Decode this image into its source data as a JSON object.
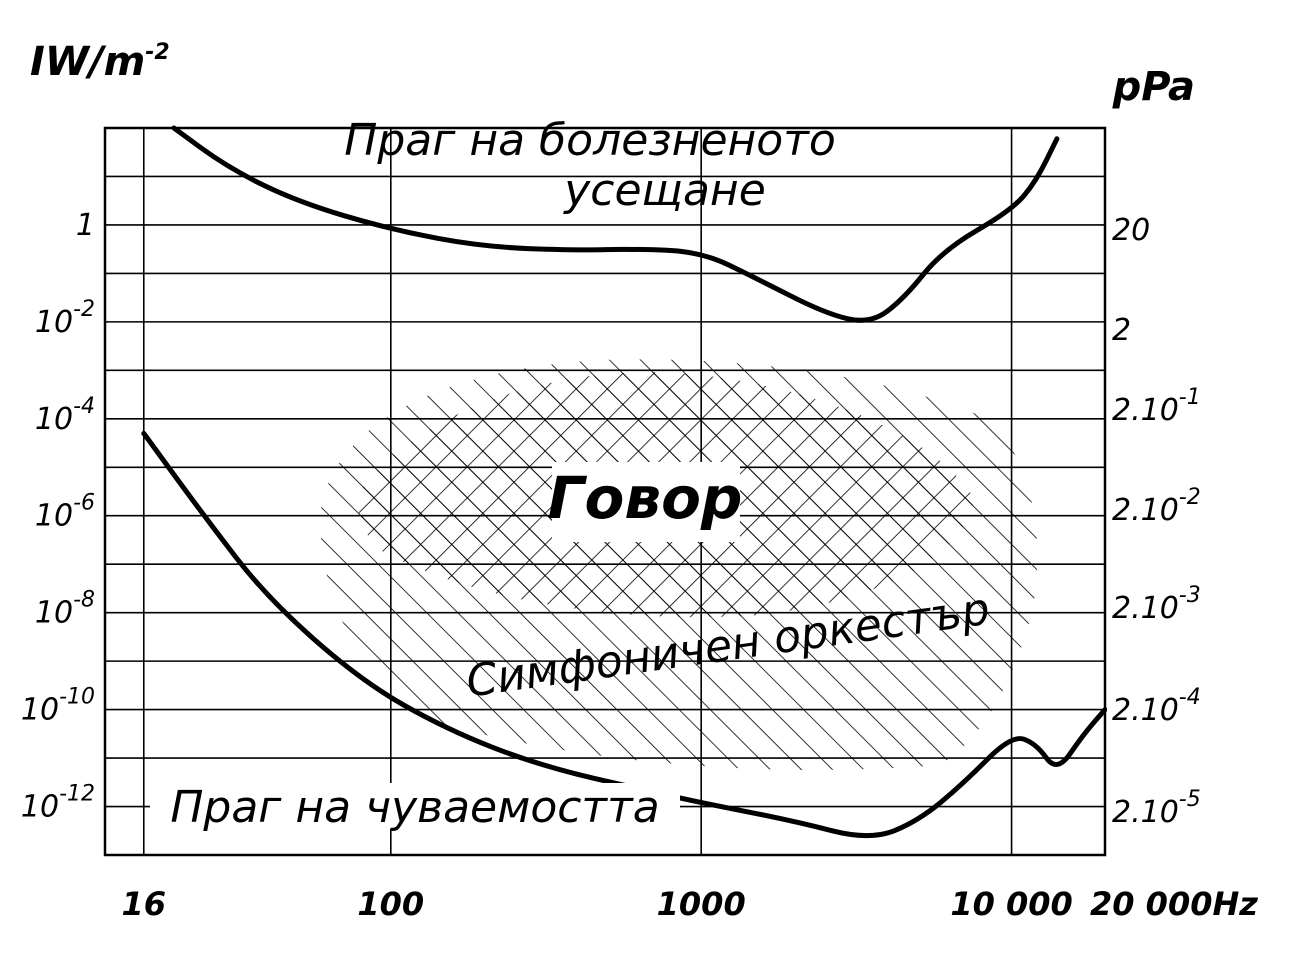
{
  "chart_data": {
    "type": "line",
    "y_left_label": "IW/m",
    "y_left_label_sup": "-2",
    "y_right_label": "pPa",
    "x_unit_label": "Hz",
    "x_scale": "log",
    "x_ticks": [
      {
        "value": 16,
        "label": "16"
      },
      {
        "value": 100,
        "label": "100"
      },
      {
        "value": 1000,
        "label": "1000"
      },
      {
        "value": 10000,
        "label": "10 000"
      },
      {
        "value": 20000,
        "label": "20 000"
      }
    ],
    "y_left_scale": "log",
    "y_left_ticks": [
      {
        "value": 1,
        "base": "1",
        "exp": ""
      },
      {
        "value": 0.01,
        "base": "10",
        "exp": "-2"
      },
      {
        "value": 0.0001,
        "base": "10",
        "exp": "-4"
      },
      {
        "value": 1e-06,
        "base": "10",
        "exp": "-6"
      },
      {
        "value": 1e-08,
        "base": "10",
        "exp": "-8"
      },
      {
        "value": 1e-10,
        "base": "10",
        "exp": "-10"
      },
      {
        "value": 1e-12,
        "base": "10",
        "exp": "-12"
      }
    ],
    "y_right_ticks": [
      {
        "value": 20,
        "base": "20",
        "exp": ""
      },
      {
        "value": 2,
        "base": "2",
        "exp": ""
      },
      {
        "value": 0.2,
        "base": "2.10",
        "exp": "-1"
      },
      {
        "value": 0.02,
        "base": "2.10",
        "exp": "-2"
      },
      {
        "value": 0.002,
        "base": "2.10",
        "exp": "-3"
      },
      {
        "value": 0.0002,
        "base": "2.10",
        "exp": "-4"
      },
      {
        "value": 2e-05,
        "base": "2.10",
        "exp": "-5"
      }
    ],
    "xlim": [
      12,
      20000
    ],
    "ylim_left": [
      1e-13,
      100
    ],
    "grid": true,
    "series": [
      {
        "name": "Праг на болезненото усещане",
        "label_lines": [
          "Праг на болезненото",
          "усещане"
        ],
        "points": [
          [
            20,
            100
          ],
          [
            30,
            15
          ],
          [
            50,
            3
          ],
          [
            100,
            0.8
          ],
          [
            200,
            0.35
          ],
          [
            400,
            0.3
          ],
          [
            600,
            0.32
          ],
          [
            1000,
            0.28
          ],
          [
            1500,
            0.08
          ],
          [
            2500,
            0.015
          ],
          [
            3500,
            0.009
          ],
          [
            4500,
            0.03
          ],
          [
            6000,
            0.3
          ],
          [
            10000,
            2
          ],
          [
            12000,
            8
          ],
          [
            14000,
            60
          ]
        ]
      },
      {
        "name": "Праг на чуваемостта",
        "label_lines": [
          "Праг на чуваемостта"
        ],
        "points": [
          [
            16,
            5e-05
          ],
          [
            25,
            1e-06
          ],
          [
            40,
            2e-08
          ],
          [
            80,
            4e-10
          ],
          [
            150,
            4e-11
          ],
          [
            300,
            7e-12
          ],
          [
            700,
            2e-12
          ],
          [
            1000,
            1.2e-12
          ],
          [
            2000,
            5e-13
          ],
          [
            3500,
            2e-13
          ],
          [
            5000,
            5e-13
          ],
          [
            7000,
            3e-12
          ],
          [
            10000,
            3e-11
          ],
          [
            12000,
            2e-11
          ],
          [
            14000,
            5e-12
          ],
          [
            17000,
            3e-11
          ],
          [
            20000,
            1e-10
          ]
        ]
      }
    ],
    "regions": [
      {
        "name": "Говор",
        "label": "Говор"
      },
      {
        "name": "Симфоничен оркестър",
        "label": "Симфоничен оркестър"
      }
    ]
  }
}
